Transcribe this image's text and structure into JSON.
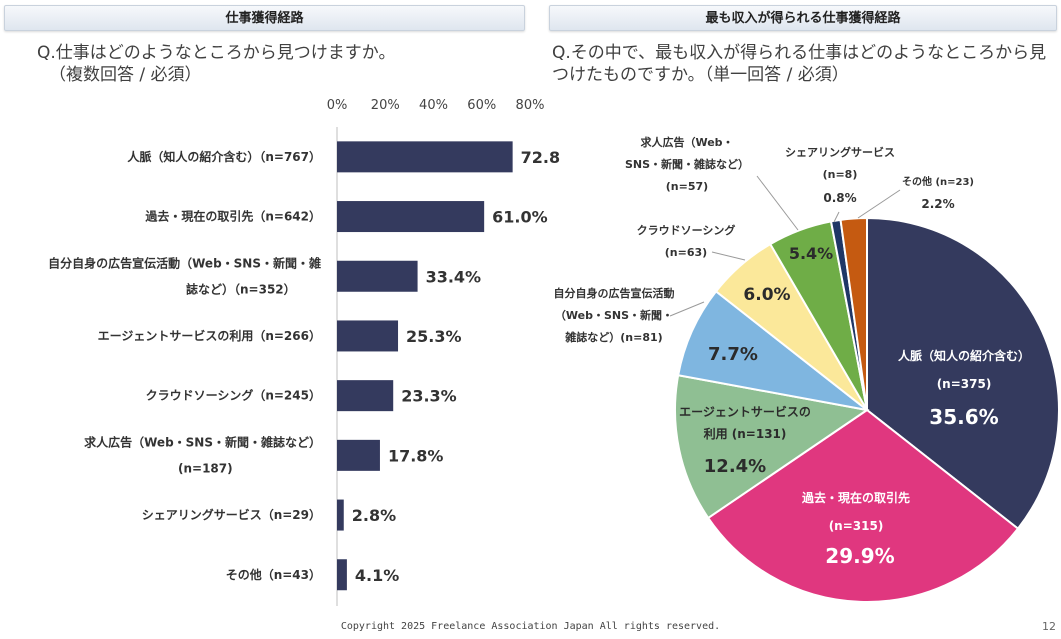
{
  "header": {
    "left_title": "仕事獲得経路",
    "right_title": "最も収入が得られる仕事獲得経路"
  },
  "question_left": {
    "main": "Q.仕事はどのようなところから見つけますか。",
    "sub": "（複数回答 / 必須）"
  },
  "question_right": {
    "main": "Q.その中で、最も収入が得られる仕事はどのようなところから見つけたものですか。（単一回答 / 必須）"
  },
  "footer": "Copyright 2025 Freelance Association Japan  All rights reserved.",
  "page_number": "12",
  "colors": {
    "bar": "#343a5e",
    "pie": [
      "#343a5e",
      "#e0377f",
      "#8fbf93",
      "#7fb6e0",
      "#fbe89a",
      "#6fad47",
      "#1f3766",
      "#c55a11"
    ]
  },
  "chart_data": [
    {
      "type": "bar",
      "orientation": "horizontal",
      "xlim": [
        0,
        80
      ],
      "ticks": [
        "0%",
        "20%",
        "40%",
        "60%",
        "80%"
      ],
      "tick_values": [
        0,
        20,
        40,
        60,
        80
      ],
      "categories": [
        [
          "人脈（知人の紹介含む）（n=767）"
        ],
        [
          "過去・現在の取引先（n=642）"
        ],
        [
          "自分自身の広告宣伝活動（Web・SNS・新聞・雑",
          "誌など）（n=352）"
        ],
        [
          "エージェントサービスの利用（n=266）"
        ],
        [
          "クラウドソーシング（n=245）"
        ],
        [
          "求人広告（Web・SNS・新聞・雑誌など）",
          "(n=187)"
        ],
        [
          "シェアリングサービス（n=29）"
        ],
        [
          "その他（n=43）"
        ]
      ],
      "values": [
        72.8,
        61.0,
        33.4,
        25.3,
        23.3,
        17.8,
        2.8,
        4.1
      ],
      "value_labels": [
        "72.8%",
        "61.0%",
        "33.4%",
        "25.3%",
        "23.3%",
        "17.8%",
        "2.8%",
        "4.1%"
      ]
    },
    {
      "type": "pie",
      "slices": [
        {
          "label": [
            "人脈（知人の紹介含む）",
            "(n=375)"
          ],
          "value": 35.6,
          "value_label": "35.6%"
        },
        {
          "label": [
            "過去・現在の取引先",
            "(n=315)"
          ],
          "value": 29.9,
          "value_label": "29.9%"
        },
        {
          "label": [
            "エージェントサービスの",
            "利用 (n=131)"
          ],
          "value": 12.4,
          "value_label": "12.4%"
        },
        {
          "label": [
            "自分自身の広告宣伝活動",
            "（Web・SNS・新聞・",
            "雑誌など）(n=81)"
          ],
          "value": 7.7,
          "value_label": "7.7%"
        },
        {
          "label": [
            "クラウドソーシング",
            "(n=63)"
          ],
          "value": 6.0,
          "value_label": "6.0%"
        },
        {
          "label": [
            "求人広告（Web・",
            "SNS・新聞・雑誌など）",
            "(n=57)"
          ],
          "value": 5.4,
          "value_label": "5.4%"
        },
        {
          "label": [
            "シェアリングサービス",
            "(n=8)"
          ],
          "value": 0.8,
          "value_label": "0.8%"
        },
        {
          "label": [
            "その他 (n=23)"
          ],
          "value": 2.2,
          "value_label": "2.2%"
        }
      ]
    }
  ]
}
